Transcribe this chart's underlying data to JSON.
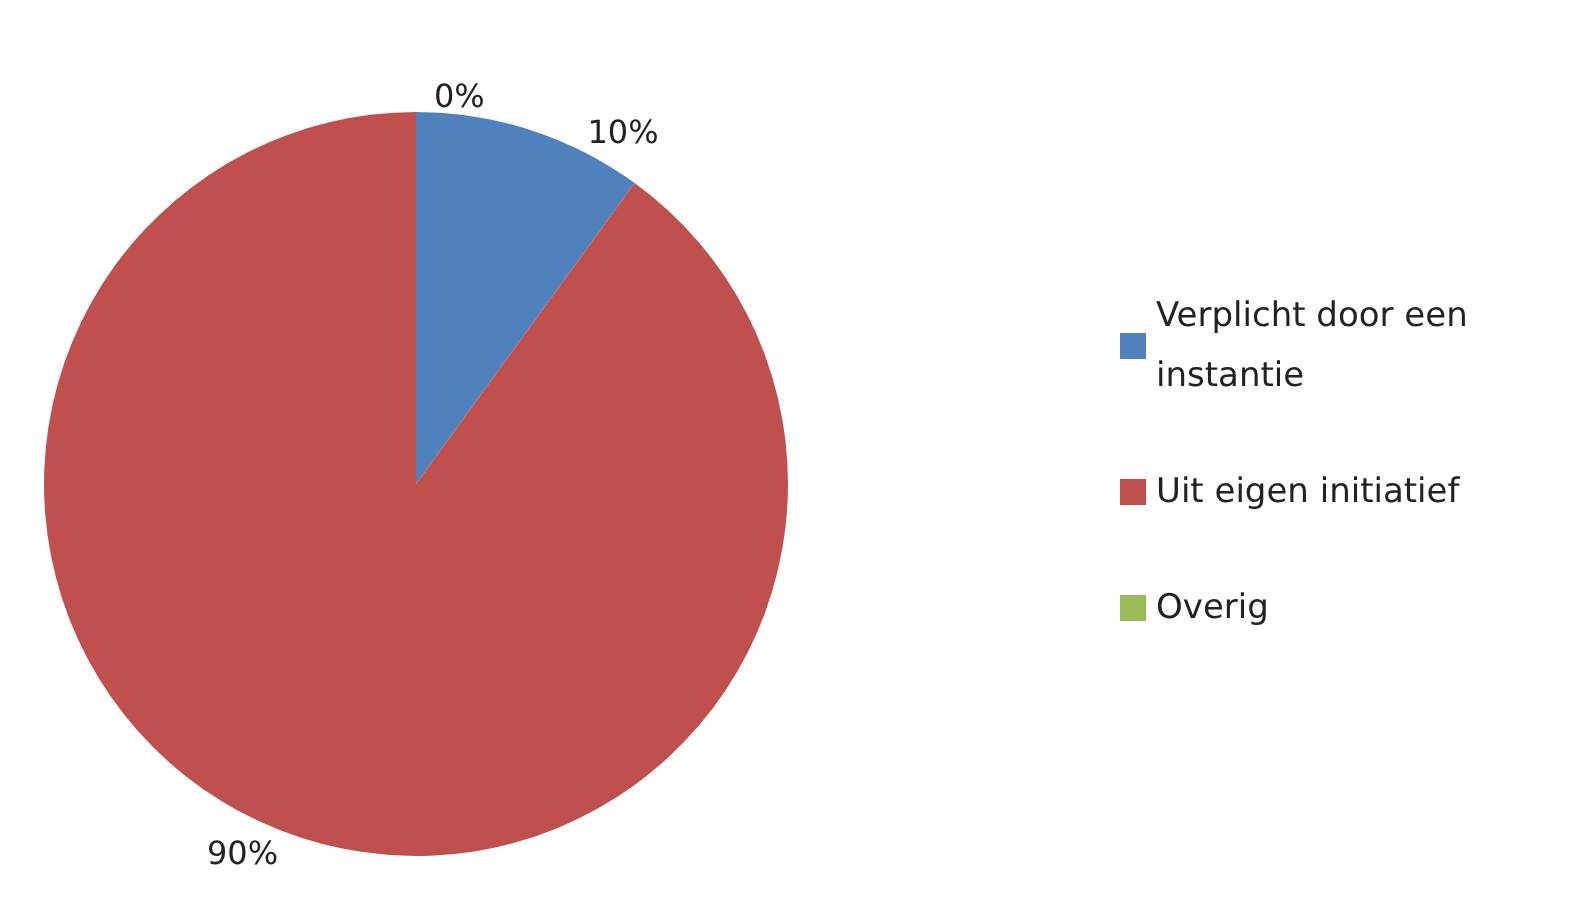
{
  "chart_data": {
    "type": "pie",
    "categories": [
      "Verplicht door een instantie",
      "Uit eigen initiatief",
      "Overig"
    ],
    "values": [
      10,
      90,
      0
    ],
    "value_labels": [
      "10%",
      "90%",
      "0%"
    ],
    "colors": [
      "#4f81bd",
      "#c0504d",
      "#9bbb59"
    ],
    "legend": "right"
  }
}
